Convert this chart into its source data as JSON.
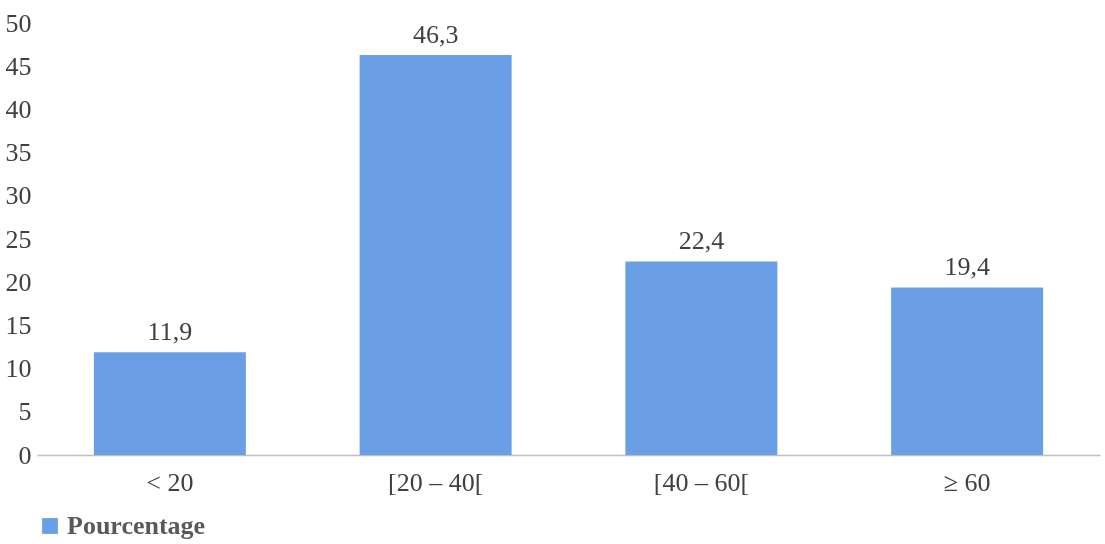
{
  "chart_data": {
    "type": "bar",
    "categories": [
      "< 20",
      "[20 – 40[",
      "[40 – 60[",
      "≥ 60"
    ],
    "series": [
      {
        "name": "Pourcentage",
        "color": "#6a9fe6",
        "values": [
          11.9,
          46.3,
          22.4,
          19.4
        ],
        "value_labels": [
          "11,9",
          "46,3",
          "22,4",
          "19,4"
        ]
      }
    ],
    "ylim": [
      0,
      50
    ],
    "yticks": [
      0,
      5,
      10,
      15,
      20,
      25,
      30,
      35,
      40,
      45,
      50
    ],
    "grid": false,
    "legend": "bottom"
  }
}
